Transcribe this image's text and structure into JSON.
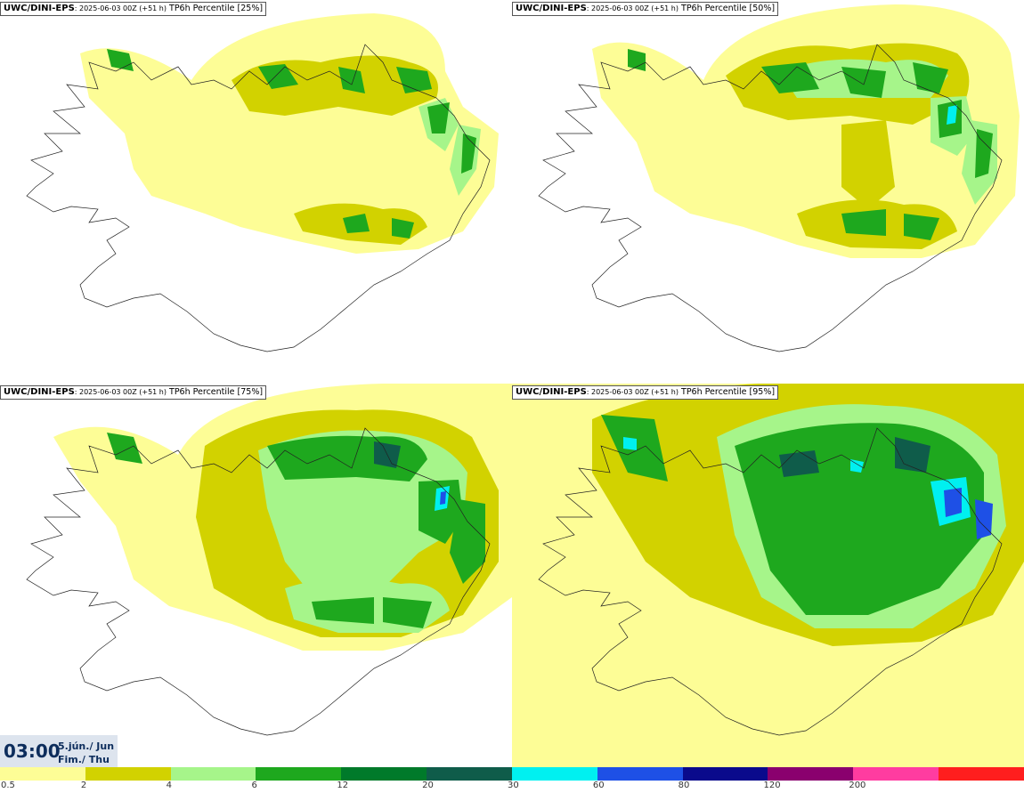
{
  "panels": [
    {
      "model": "UWC/DINI-EPS",
      "run": ": 2025-06-03 00Z (+51 h)",
      "field": "TP6h Percentile [25%]",
      "percentile": 25
    },
    {
      "model": "UWC/DINI-EPS",
      "run": ": 2025-06-03 00Z (+51 h)",
      "field": "TP6h Percentile [50%]",
      "percentile": 50
    },
    {
      "model": "UWC/DINI-EPS",
      "run": ": 2025-06-03 00Z (+51 h)",
      "field": "TP6h Percentile [75%]",
      "percentile": 75
    },
    {
      "model": "UWC/DINI-EPS",
      "run": ": 2025-06-03 00Z (+51 h)",
      "field": "TP6h Percentile [95%]",
      "percentile": 95
    }
  ],
  "valid_time": {
    "hour": "03:00",
    "date": "5.jún./ Jun",
    "weekday": "Fim./ Thu"
  },
  "colorbar": {
    "colors": [
      "#fdfd96",
      "#d2d200",
      "#a6f58a",
      "#1ea81e",
      "#007a2a",
      "#0f5c4a",
      "#00f0f0",
      "#1e50e6",
      "#0a0a8c",
      "#8a006e",
      "#ff3ca0",
      "#ff1e1e"
    ],
    "labels": [
      "0.5",
      "2",
      "4",
      "6",
      "12",
      "20",
      "30",
      "60",
      "80",
      "120",
      "200"
    ]
  }
}
